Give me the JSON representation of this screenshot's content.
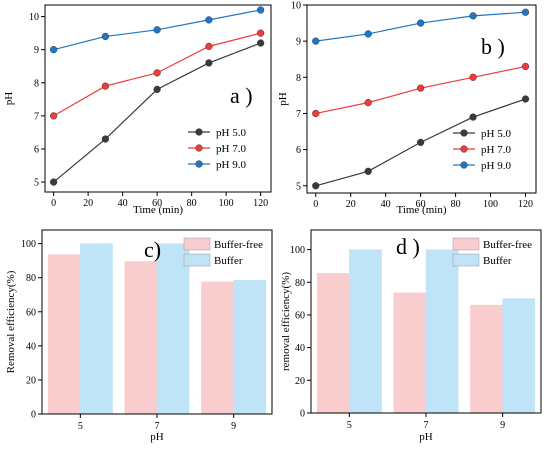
{
  "chart_data": [
    {
      "type": "line",
      "panel_label": "a )",
      "xlabel": "Time (min)",
      "ylabel": "pH",
      "x": [
        0,
        30,
        60,
        90,
        120
      ],
      "xticks": [
        "0",
        "20",
        "40",
        "60",
        "80",
        "100",
        "120"
      ],
      "xtick_values": [
        0,
        20,
        40,
        60,
        80,
        100,
        120
      ],
      "xlim": [
        -5,
        126
      ],
      "ylim": [
        4.7,
        10.35
      ],
      "yticks": [
        "5",
        "6",
        "7",
        "8",
        "9",
        "10"
      ],
      "ytick_values": [
        5,
        6,
        7,
        8,
        9,
        10
      ],
      "legend_position": "bottom-right",
      "series": [
        {
          "name": "pH 5.0",
          "color": "#3a3a3a",
          "values": [
            5.0,
            6.3,
            7.8,
            8.6,
            9.2
          ]
        },
        {
          "name": "pH 7.0",
          "color": "#ee3b3b",
          "values": [
            7.0,
            7.9,
            8.3,
            9.1,
            9.5
          ]
        },
        {
          "name": "pH 9.0",
          "color": "#1f77c4",
          "values": [
            9.0,
            9.4,
            9.6,
            9.9,
            10.2
          ]
        }
      ]
    },
    {
      "type": "line",
      "panel_label": "b )",
      "xlabel": "Time (min)",
      "ylabel": "pH",
      "x": [
        0,
        30,
        60,
        90,
        120
      ],
      "xticks": [
        "0",
        "20",
        "40",
        "60",
        "80",
        "100",
        "120"
      ],
      "xtick_values": [
        0,
        20,
        40,
        60,
        80,
        100,
        120
      ],
      "xlim": [
        -5,
        126
      ],
      "ylim": [
        4.8,
        10.0
      ],
      "yticks": [
        "5",
        "6",
        "7",
        "8",
        "9",
        "10"
      ],
      "ytick_values": [
        5,
        6,
        7,
        8,
        9,
        10
      ],
      "legend_position": "bottom-right",
      "series": [
        {
          "name": "pH 5.0",
          "color": "#3a3a3a",
          "values": [
            5.0,
            5.4,
            6.2,
            6.9,
            7.4
          ]
        },
        {
          "name": "pH 7.0",
          "color": "#ee3b3b",
          "values": [
            7.0,
            7.3,
            7.7,
            8.0,
            8.3
          ]
        },
        {
          "name": "pH 9.0",
          "color": "#1f77c4",
          "values": [
            9.0,
            9.2,
            9.5,
            9.7,
            9.8
          ]
        }
      ]
    },
    {
      "type": "bar",
      "panel_label": "c)",
      "xlabel": "pH",
      "ylabel": "Removal efficiency(%)",
      "categories": [
        "5",
        "7",
        "9"
      ],
      "ylim": [
        0,
        108
      ],
      "yticks": [
        "0",
        "20",
        "40",
        "60",
        "80",
        "100"
      ],
      "ytick_values": [
        0,
        20,
        40,
        60,
        80,
        100
      ],
      "legend_position": "top-right",
      "series": [
        {
          "name": "Buffer-free",
          "color": "#f9cdcd",
          "values": [
            93.5,
            89.5,
            77.5
          ]
        },
        {
          "name": "Buffer",
          "color": "#bfe3f7",
          "values": [
            100,
            100,
            78.5
          ]
        }
      ]
    },
    {
      "type": "bar",
      "panel_label": "d )",
      "xlabel": "pH",
      "ylabel": "removal efficiency(%)",
      "categories": [
        "5",
        "7",
        "9"
      ],
      "ylim": [
        0,
        112
      ],
      "yticks": [
        "0",
        "20",
        "40",
        "60",
        "80",
        "100"
      ],
      "ytick_values": [
        0,
        20,
        40,
        60,
        80,
        100
      ],
      "legend_position": "top-right",
      "series": [
        {
          "name": "Buffer-free",
          "color": "#f9cdcd",
          "values": [
            85.5,
            73.5,
            66
          ]
        },
        {
          "name": "Buffer",
          "color": "#bfe3f7",
          "values": [
            100,
            100,
            70
          ]
        }
      ]
    }
  ]
}
